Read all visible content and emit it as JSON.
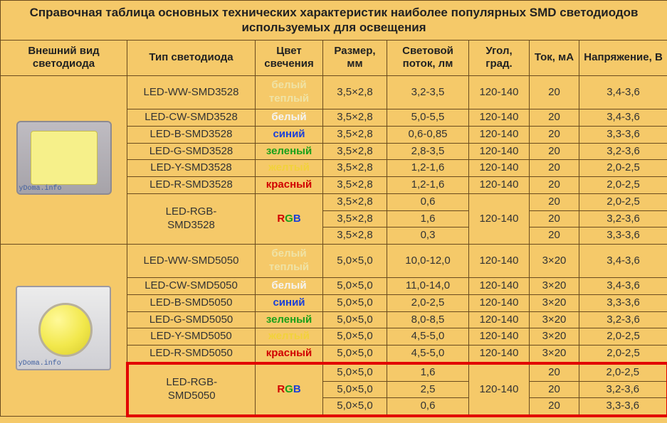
{
  "title_line1": "Справочная таблица основных технических характеристик наиболее популярных SMD светодиодов",
  "title_line2": "используемых для освещения",
  "headers": {
    "img": "Внешний вид светодиода",
    "type": "Тип светодиода",
    "color": "Цвет свечения",
    "size": "Размер, мм",
    "flux": "Световой поток, лм",
    "angle": "Угол, град.",
    "ma": "Ток, мА",
    "v": "Напряжение, В"
  },
  "watermark": "yDoma.info",
  "color_styles": {
    "warm_white": {
      "text": "белый теплый",
      "color": "#efe3a6"
    },
    "white": {
      "text": "белый",
      "color": "#f4f4f4"
    },
    "blue": {
      "text": "синий",
      "color": "#1a3fd8"
    },
    "green": {
      "text": "зеленый",
      "color": "#1aa01a"
    },
    "yellow": {
      "text": "желтый",
      "color": "#f2d23a"
    },
    "red": {
      "text": "красный",
      "color": "#d00000"
    }
  },
  "rgb_letters": [
    "R",
    "G",
    "B"
  ],
  "groups": [
    {
      "image_kind": "led3528",
      "rows": [
        {
          "type": "LED-WW-SMD3528",
          "color": "warm_white",
          "size": "3,5×2,8",
          "flux": "3,2-3,5",
          "angle": "120-140",
          "ma": "20",
          "v": "3,4-3,6",
          "tall": true
        },
        {
          "type": "LED-CW-SMD3528",
          "color": "white",
          "size": "3,5×2,8",
          "flux": "5,0-5,5",
          "angle": "120-140",
          "ma": "20",
          "v": "3,4-3,6"
        },
        {
          "type": "LED-B-SMD3528",
          "color": "blue",
          "size": "3,5×2,8",
          "flux": "0,6-0,85",
          "angle": "120-140",
          "ma": "20",
          "v": "3,3-3,6"
        },
        {
          "type": "LED-G-SMD3528",
          "color": "green",
          "size": "3,5×2,8",
          "flux": "2,8-3,5",
          "angle": "120-140",
          "ma": "20",
          "v": "3,2-3,6"
        },
        {
          "type": "LED-Y-SMD3528",
          "color": "yellow",
          "size": "3,5×2,8",
          "flux": "1,2-1,6",
          "angle": "120-140",
          "ma": "20",
          "v": "2,0-2,5"
        },
        {
          "type": "LED-R-SMD3528",
          "color": "red",
          "size": "3,5×2,8",
          "flux": "1,2-1,6",
          "angle": "120-140",
          "ma": "20",
          "v": "2,0-2,5"
        }
      ],
      "rgb": {
        "type_line1": "LED-RGB-",
        "type_line2": "SMD3528",
        "angle": "120-140",
        "sub": [
          {
            "size": "3,5×2,8",
            "flux": "0,6",
            "ma": "20",
            "v": "2,0-2,5"
          },
          {
            "size": "3,5×2,8",
            "flux": "1,6",
            "ma": "20",
            "v": "3,2-3,6"
          },
          {
            "size": "3,5×2,8",
            "flux": "0,3",
            "ma": "20",
            "v": "3,3-3,6"
          }
        ],
        "highlight": false
      }
    },
    {
      "image_kind": "led5050",
      "rows": [
        {
          "type": "LED-WW-SMD5050",
          "color": "warm_white",
          "size": "5,0×5,0",
          "flux": "10,0-12,0",
          "angle": "120-140",
          "ma": "3×20",
          "v": "3,4-3,6",
          "tall": true
        },
        {
          "type": "LED-CW-SMD5050",
          "color": "white",
          "size": "5,0×5,0",
          "flux": "11,0-14,0",
          "angle": "120-140",
          "ma": "3×20",
          "v": "3,4-3,6"
        },
        {
          "type": "LED-B-SMD5050",
          "color": "blue",
          "size": "5,0×5,0",
          "flux": "2,0-2,5",
          "angle": "120-140",
          "ma": "3×20",
          "v": "3,3-3,6"
        },
        {
          "type": "LED-G-SMD5050",
          "color": "green",
          "size": "5,0×5,0",
          "flux": "8,0-8,5",
          "angle": "120-140",
          "ma": "3×20",
          "v": "3,2-3,6"
        },
        {
          "type": "LED-Y-SMD5050",
          "color": "yellow",
          "size": "5,0×5,0",
          "flux": "4,5-5,0",
          "angle": "120-140",
          "ma": "3×20",
          "v": "2,0-2,5"
        },
        {
          "type": "LED-R-SMD5050",
          "color": "red",
          "size": "5,0×5,0",
          "flux": "4,5-5,0",
          "angle": "120-140",
          "ma": "3×20",
          "v": "2,0-2,5"
        }
      ],
      "rgb": {
        "type_line1": "LED-RGB-",
        "type_line2": "SMD5050",
        "angle": "120-140",
        "sub": [
          {
            "size": "5,0×5,0",
            "flux": "1,6",
            "ma": "20",
            "v": "2,0-2,5"
          },
          {
            "size": "5,0×5,0",
            "flux": "2,5",
            "ma": "20",
            "v": "3,2-3,6"
          },
          {
            "size": "5,0×5,0",
            "flux": "0,6",
            "ma": "20",
            "v": "3,3-3,6"
          }
        ],
        "highlight": true
      }
    }
  ]
}
